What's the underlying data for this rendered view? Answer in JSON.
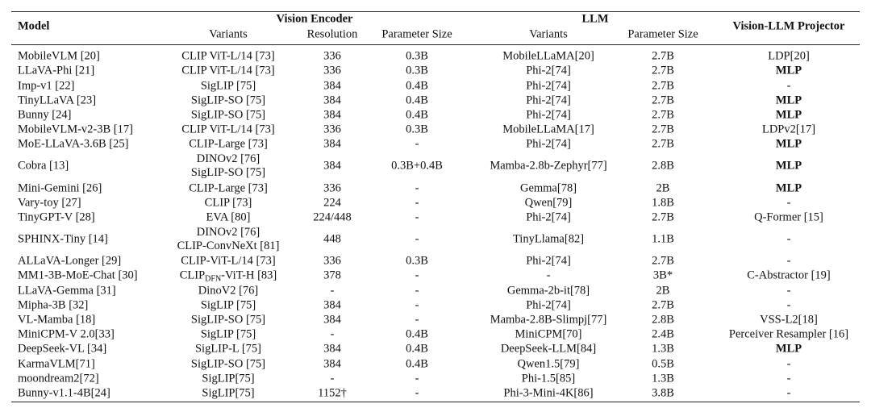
{
  "header": {
    "model": "Model",
    "vision_encoder": "Vision Encoder",
    "llm": "LLM",
    "projector": "Vision-LLM Projector",
    "subheaders": [
      "Variants",
      "Resolution",
      "Parameter Size",
      "Variants",
      "Parameter Size"
    ]
  },
  "table": {
    "bold_projector_rows": [
      1,
      3,
      4,
      6,
      7,
      8,
      18
    ],
    "rows": [
      [
        "MobileVLM [20]",
        "CLIP ViT-L/14 [73]",
        "336",
        "0.3B",
        "MobileLLaMA[20]",
        "2.7B",
        "LDP[20]"
      ],
      [
        "LLaVA-Phi [21]",
        "CLIP ViT-L/14 [73]",
        "336",
        "0.3B",
        "Phi-2[74]",
        "2.7B",
        "MLP"
      ],
      [
        "Imp-v1 [22]",
        "SigLIP [75]",
        "384",
        "0.4B",
        "Phi-2[74]",
        "2.7B",
        "-"
      ],
      [
        "TinyLLaVA [23]",
        "SigLIP-SO [75]",
        "384",
        "0.4B",
        "Phi-2[74]",
        "2.7B",
        "MLP"
      ],
      [
        "Bunny [24]",
        "SigLIP-SO [75]",
        "384",
        "0.4B",
        "Phi-2[74]",
        "2.7B",
        "MLP"
      ],
      [
        "MobileVLM-v2-3B [17]",
        "CLIP ViT-L/14 [73]",
        "336",
        "0.3B",
        "MobileLLaMA[17]",
        "2.7B",
        "LDPv2[17]"
      ],
      [
        "MoE-LLaVA-3.6B [25]",
        "CLIP-Large [73]",
        "384",
        "-",
        "Phi-2[74]",
        "2.7B",
        "MLP"
      ],
      [
        "Cobra [13]",
        [
          "DINOv2 [76]",
          "SigLIP-SO [75]"
        ],
        "384",
        "0.3B+0.4B",
        "Mamba-2.8b-Zephyr[77]",
        "2.8B",
        "MLP"
      ],
      [
        "Mini-Gemini [26]",
        "CLIP-Large [73]",
        "336",
        "-",
        "Gemma[78]",
        "2B",
        "MLP"
      ],
      [
        "Vary-toy [27]",
        "CLIP [73]",
        "224",
        "-",
        "Qwen[79]",
        "1.8B",
        "-"
      ],
      [
        "TinyGPT-V [28]",
        "EVA [80]",
        "224/448",
        "-",
        "Phi-2[74]",
        "2.7B",
        "Q-Former [15]"
      ],
      [
        "SPHINX-Tiny [14]",
        [
          "DINOv2 [76]",
          "CLIP-ConvNeXt [81]"
        ],
        "448",
        "-",
        "TinyLlama[82]",
        "1.1B",
        "-"
      ],
      [
        "ALLaVA-Longer [29]",
        "CLIP-ViT-L/14 [73]",
        "336",
        "0.3B",
        "Phi-2[74]",
        "2.7B",
        "-"
      ],
      [
        "MM1-3B-MoE-Chat [30]",
        {
          "text": "CLIP",
          "sub": "DFN",
          "rest": "-ViT-H [83]"
        },
        "378",
        "-",
        "-",
        "3B*",
        "C-Abstractor [19]"
      ],
      [
        "LLaVA-Gemma [31]",
        "DinoV2 [76]",
        "-",
        "-",
        "Gemma-2b-it[78]",
        "2B",
        "-"
      ],
      [
        "Mipha-3B [32]",
        "SigLIP [75]",
        "384",
        "-",
        "Phi-2[74]",
        "2.7B",
        "-"
      ],
      [
        "VL-Mamba [18]",
        "SigLIP-SO [75]",
        "384",
        "-",
        "Mamba-2.8B-Slimpj[77]",
        "2.8B",
        "VSS-L2[18]"
      ],
      [
        "MiniCPM-V 2.0[33]",
        "SigLIP [75]",
        "-",
        "0.4B",
        "MiniCPM[70]",
        "2.4B",
        "Perceiver Resampler [16]"
      ],
      [
        "DeepSeek-VL [34]",
        "SigLIP-L [75]",
        "384",
        "0.4B",
        "DeepSeek-LLM[84]",
        "1.3B",
        "MLP"
      ],
      [
        "KarmaVLM[71]",
        "SigLIP-SO [75]",
        "384",
        "0.4B",
        "Qwen1.5[79]",
        "0.5B",
        "-"
      ],
      [
        "moondream2[72]",
        "SigLIP[75]",
        "-",
        "-",
        "Phi-1.5[85]",
        "1.3B",
        "-"
      ],
      [
        "Bunny-v1.1-4B[24]",
        "SigLIP[75]",
        "1152†",
        "-",
        "Phi-3-Mini-4K[86]",
        "3.8B",
        "-"
      ]
    ]
  }
}
